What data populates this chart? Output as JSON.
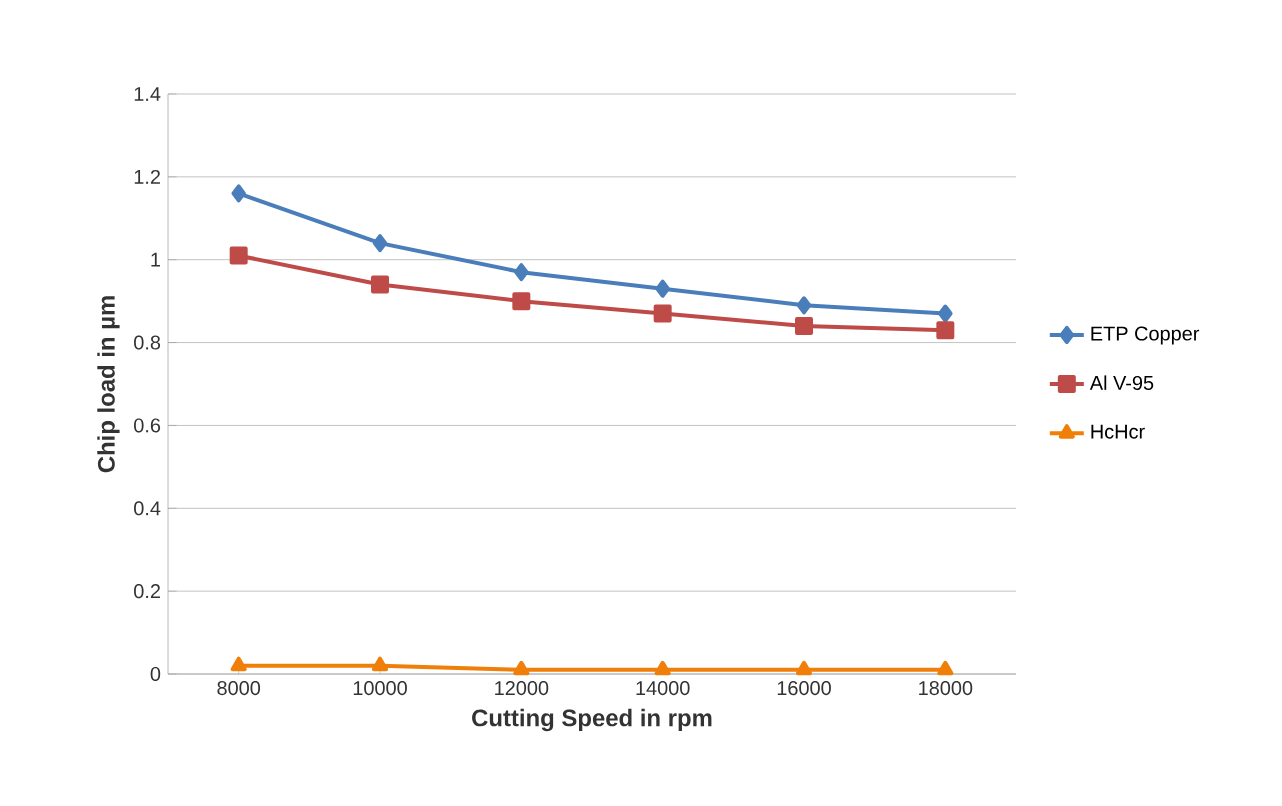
{
  "chart_data": {
    "type": "line",
    "xlabel": "Cutting Speed in rpm",
    "ylabel": "Chip load in µm",
    "categories": [
      "8000",
      "10000",
      "12000",
      "14000",
      "16000",
      "18000"
    ],
    "series": [
      {
        "name": "ETP Copper",
        "color": "#4a7ebb",
        "marker": "diamond",
        "values": [
          1.16,
          1.04,
          0.97,
          0.93,
          0.89,
          0.87
        ]
      },
      {
        "name": "Al V-95",
        "color": "#be4b48",
        "marker": "square",
        "values": [
          1.01,
          0.94,
          0.9,
          0.87,
          0.84,
          0.83
        ]
      },
      {
        "name": "HcHcr",
        "color": "#f07f09",
        "marker": "triangle",
        "values": [
          0.02,
          0.02,
          0.01,
          0.01,
          0.01,
          0.01
        ]
      }
    ],
    "ylim": [
      0,
      1.4
    ],
    "yticks": [
      0,
      0.2,
      0.4,
      0.6,
      0.8,
      1,
      1.2,
      1.4
    ],
    "grid": "y",
    "legend": "right"
  }
}
